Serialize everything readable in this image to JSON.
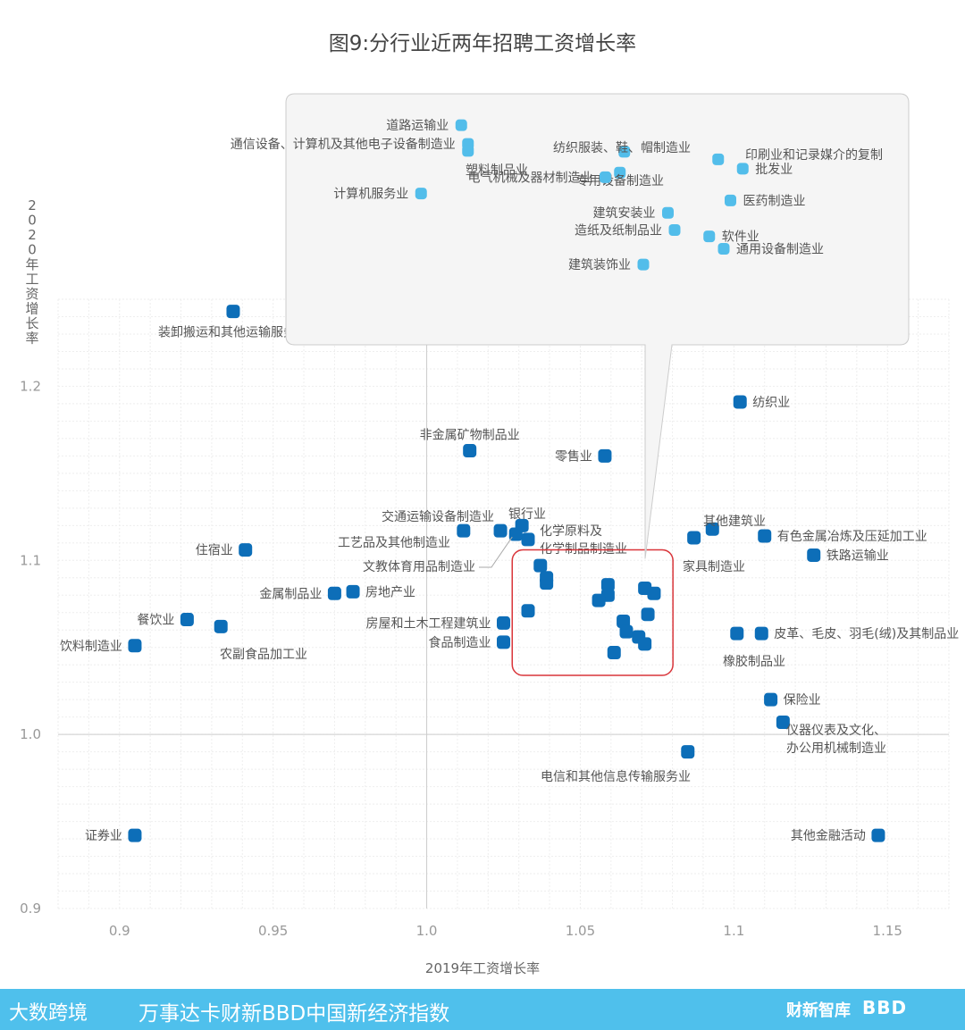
{
  "chart_data": {
    "type": "scatter",
    "title": "图9:分行业近两年招聘工资增长率",
    "xlabel": "2019年工资增长率",
    "ylabel": "2020年工资增长率",
    "xlim": [
      0.88,
      1.17
    ],
    "ylim": [
      0.9,
      1.25
    ],
    "xticks": [
      "0.9",
      "0.95",
      "1.0",
      "1.05",
      "1.1",
      "1.15"
    ],
    "yticks": [
      "0.9",
      "1.0",
      "1.1",
      "1.2"
    ],
    "grid": true,
    "colors": {
      "point": "#0d6eb8",
      "inset_point": "#52bdea",
      "highlight_box": "#d9353a",
      "label": "#555555"
    },
    "points": [
      {
        "label": "装卸搬运和其他运输服务业",
        "x": 0.937,
        "y": 1.243
      },
      {
        "label": "纺织业",
        "x": 1.102,
        "y": 1.191
      },
      {
        "label": "非金属矿物制品业",
        "x": 1.014,
        "y": 1.163
      },
      {
        "label": "零售业",
        "x": 1.058,
        "y": 1.16
      },
      {
        "label": "交通运输设备制造业",
        "x": 1.024,
        "y": 1.117
      },
      {
        "label": "工艺品及其他制造业",
        "x": 1.012,
        "y": 1.117
      },
      {
        "label": "银行业",
        "x": 1.031,
        "y": 1.12
      },
      {
        "label": "化学原料及化学制品制造业",
        "x": 1.033,
        "y": 1.112
      },
      {
        "label": "文教体育用品制造业",
        "x": 1.029,
        "y": 1.115
      },
      {
        "label": "其他建筑业",
        "x": 1.093,
        "y": 1.118
      },
      {
        "label": "家具制造业",
        "x": 1.087,
        "y": 1.113
      },
      {
        "label": "有色金属冶炼及压延加工业",
        "x": 1.11,
        "y": 1.114
      },
      {
        "label": "铁路运输业",
        "x": 1.126,
        "y": 1.103
      },
      {
        "label": "住宿业",
        "x": 0.941,
        "y": 1.106
      },
      {
        "label": "金属制品业",
        "x": 0.97,
        "y": 1.081
      },
      {
        "label": "房地产业",
        "x": 0.976,
        "y": 1.082
      },
      {
        "label": "餐饮业",
        "x": 0.922,
        "y": 1.066
      },
      {
        "label": "农副食品加工业",
        "x": 0.933,
        "y": 1.062
      },
      {
        "label": "饮料制造业",
        "x": 0.905,
        "y": 1.051
      },
      {
        "label": "房屋和土木工程建筑业",
        "x": 1.025,
        "y": 1.064
      },
      {
        "label": "食品制造业",
        "x": 1.025,
        "y": 1.053
      },
      {
        "label": "皮革、毛皮、羽毛(绒)及其制品业",
        "x": 1.109,
        "y": 1.058
      },
      {
        "label": "橡胶制品业",
        "x": 1.101,
        "y": 1.058
      },
      {
        "label": "保险业",
        "x": 1.112,
        "y": 1.02
      },
      {
        "label": "仪器仪表及文化、办公用机械制造业",
        "x": 1.116,
        "y": 1.007
      },
      {
        "label": "电信和其他信息传输服务业",
        "x": 1.085,
        "y": 0.99
      },
      {
        "label": "证券业",
        "x": 0.905,
        "y": 0.942
      },
      {
        "label": "其他金融活动",
        "x": 1.147,
        "y": 0.942
      }
    ],
    "cluster_points": [
      {
        "x": 1.037,
        "y": 1.097
      },
      {
        "x": 1.039,
        "y": 1.087
      },
      {
        "x": 1.039,
        "y": 1.09
      },
      {
        "x": 1.033,
        "y": 1.071
      },
      {
        "x": 1.059,
        "y": 1.086
      },
      {
        "x": 1.059,
        "y": 1.08
      },
      {
        "x": 1.056,
        "y": 1.077
      },
      {
        "x": 1.071,
        "y": 1.084
      },
      {
        "x": 1.074,
        "y": 1.081
      },
      {
        "x": 1.072,
        "y": 1.069
      },
      {
        "x": 1.064,
        "y": 1.065
      },
      {
        "x": 1.065,
        "y": 1.059
      },
      {
        "x": 1.069,
        "y": 1.056
      },
      {
        "x": 1.071,
        "y": 1.052
      },
      {
        "x": 1.061,
        "y": 1.047
      }
    ],
    "zoom_box": {
      "x0": 1.029,
      "x1": 1.079,
      "y0": 1.036,
      "y1": 1.104
    },
    "inset": {
      "xlim": [
        1.029,
        1.079
      ],
      "ylim": [
        1.036,
        1.104
      ],
      "points": [
        {
          "label": "道路运输业",
          "x": 1.0415,
          "y": 1.101
        },
        {
          "label": "通信设备、计算机及其他电子设备制造业",
          "x": 1.0421,
          "y": 1.0948
        },
        {
          "label": "塑料制品业",
          "x": 1.0421,
          "y": 1.0925
        },
        {
          "label": "纺织服装、鞋、帽制造业",
          "x": 1.0561,
          "y": 1.0922
        },
        {
          "label": "印刷业和记录媒介的复制",
          "x": 1.0645,
          "y": 1.0897
        },
        {
          "label": "批发业",
          "x": 1.0667,
          "y": 1.0866
        },
        {
          "label": "专用设备制造业",
          "x": 1.0557,
          "y": 1.0853
        },
        {
          "label": "电气机械及器材制造业",
          "x": 1.0544,
          "y": 1.0838
        },
        {
          "label": "计算机服务业",
          "x": 1.0379,
          "y": 1.0784
        },
        {
          "label": "医药制造业",
          "x": 1.0656,
          "y": 1.0761
        },
        {
          "label": "建筑安装业",
          "x": 1.06,
          "y": 1.072
        },
        {
          "label": "造纸及纸制品业",
          "x": 1.0606,
          "y": 1.0663
        },
        {
          "label": "软件业",
          "x": 1.0637,
          "y": 1.0642
        },
        {
          "label": "通用设备制造业",
          "x": 1.065,
          "y": 1.0601
        },
        {
          "label": "建筑装饰业",
          "x": 1.0578,
          "y": 1.0549
        }
      ]
    }
  },
  "footer": {
    "brand": "大数跨境",
    "index_name": "万事达卡财新BBD中国新经济指数",
    "partner1": "财新智库",
    "partner2": "BBD"
  }
}
